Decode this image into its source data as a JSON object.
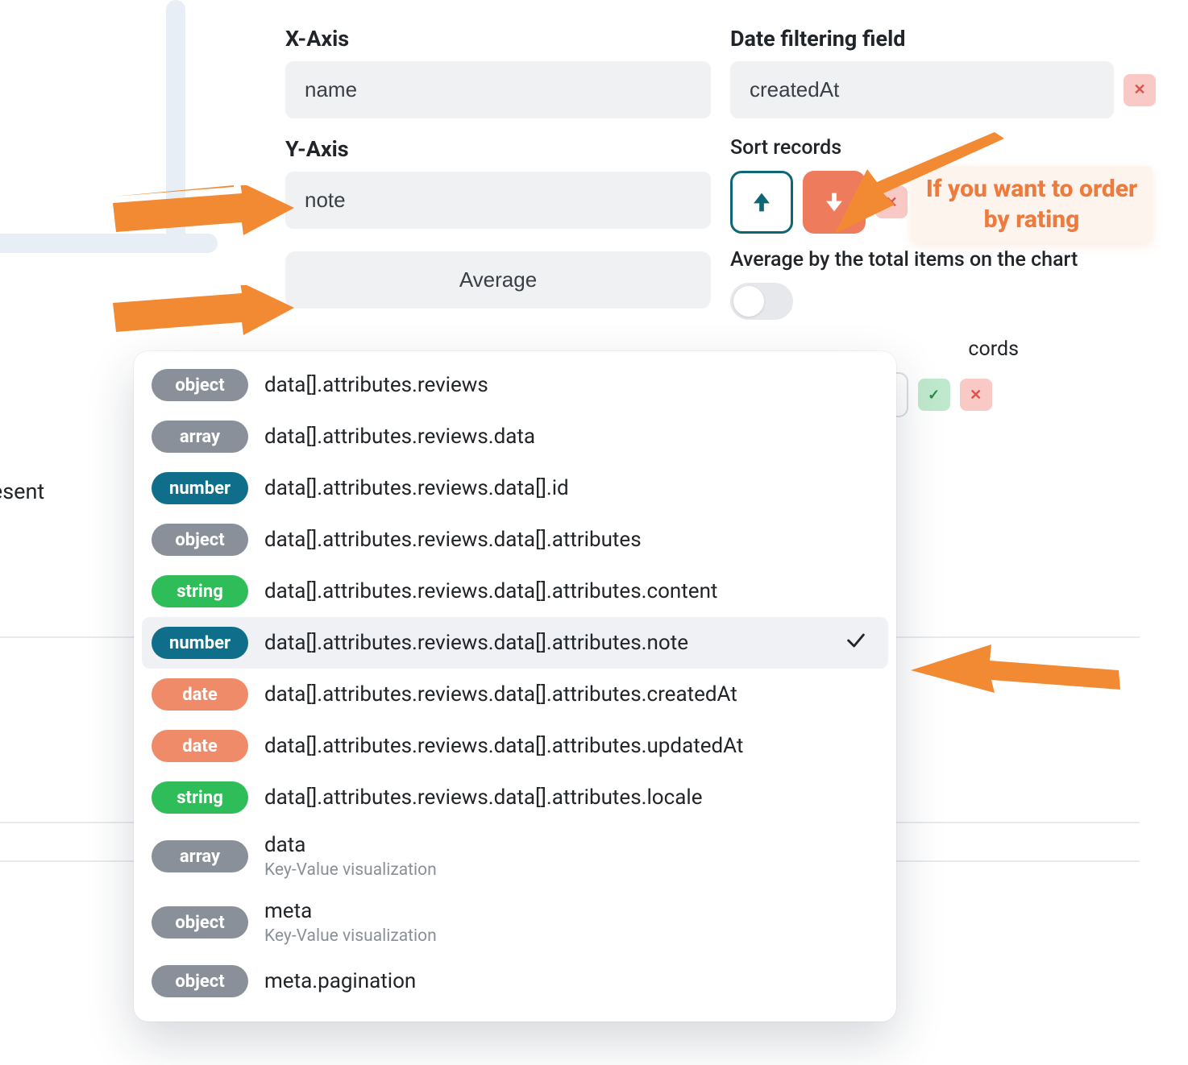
{
  "colors": {
    "accent_orange": "#f28a33",
    "accent_coral": "#ee7c5c",
    "accent_teal": "#0f6674",
    "badge_gray": "#8a9099",
    "badge_number": "#0f6e8a",
    "badge_string": "#2ebd59",
    "badge_date": "#f08b6a",
    "danger_bg": "#f9c9c5",
    "danger_fg": "#d9534f",
    "success_bg": "#bfe9cc",
    "success_fg": "#2a8a4a",
    "input_bg": "#f0f1f3",
    "text": "#212529",
    "muted": "#8a9099"
  },
  "form": {
    "x_axis": {
      "label": "X-Axis",
      "value": "name"
    },
    "y_axis": {
      "label": "Y-Axis",
      "value": "note"
    },
    "date_filter": {
      "label": "Date filtering field",
      "value": "createdAt"
    },
    "sort_records_label": "Sort records",
    "aggregate_label": "Average",
    "average_toggle_label": "Average by the total items on the chart",
    "average_toggle_on": false,
    "limit_records_label_suffix": "cords",
    "records_suffix": "records",
    "left_truncated_text": "resent"
  },
  "annotation_text": "If you want to order by rating",
  "dropdown": {
    "selected_index": 5,
    "items": [
      {
        "type": "object",
        "path": "data[].attributes.reviews"
      },
      {
        "type": "array",
        "path": "data[].attributes.reviews.data"
      },
      {
        "type": "number",
        "path": "data[].attributes.reviews.data[].id"
      },
      {
        "type": "object",
        "path": "data[].attributes.reviews.data[].attributes"
      },
      {
        "type": "string",
        "path": "data[].attributes.reviews.data[].attributes.content"
      },
      {
        "type": "number",
        "path": "data[].attributes.reviews.data[].attributes.note"
      },
      {
        "type": "date",
        "path": "data[].attributes.reviews.data[].attributes.createdAt"
      },
      {
        "type": "date",
        "path": "data[].attributes.reviews.data[].attributes.updatedAt"
      },
      {
        "type": "string",
        "path": "data[].attributes.reviews.data[].attributes.locale"
      },
      {
        "type": "array",
        "path": "data",
        "sub": "Key-Value visualization"
      },
      {
        "type": "object",
        "path": "meta",
        "sub": "Key-Value visualization"
      },
      {
        "type": "object",
        "path": "meta.pagination"
      }
    ]
  },
  "type_labels": {
    "object": "object",
    "array": "array",
    "number": "number",
    "string": "string",
    "date": "date"
  }
}
